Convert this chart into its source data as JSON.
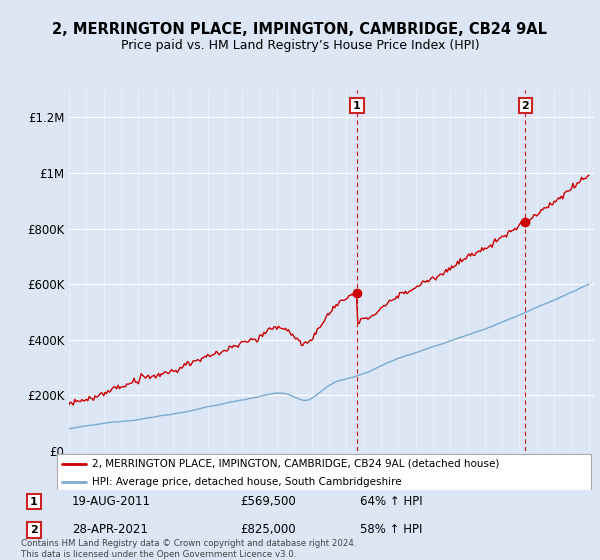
{
  "title": "2, MERRINGTON PLACE, IMPINGTON, CAMBRIDGE, CB24 9AL",
  "subtitle": "Price paid vs. HM Land Registry’s House Price Index (HPI)",
  "background_color": "#dce6f5",
  "plot_bg_color": "#dce6f5",
  "ylim": [
    0,
    1300000
  ],
  "yticks": [
    0,
    200000,
    400000,
    600000,
    800000,
    1000000,
    1200000
  ],
  "ytick_labels": [
    "£0",
    "£200K",
    "£400K",
    "£600K",
    "£800K",
    "£1M",
    "£1.2M"
  ],
  "sale1_year": 2011.625,
  "sale1_price": 569500,
  "sale2_year": 2021.33,
  "sale2_price": 825000,
  "line_color_property": "#cc0000",
  "line_color_hpi": "#7aaad0",
  "dashed_line_color": "#cc0000",
  "legend_label_property": "2, MERRINGTON PLACE, IMPINGTON, CAMBRIDGE, CB24 9AL (detached house)",
  "legend_label_hpi": "HPI: Average price, detached house, South Cambridgeshire",
  "footer": "Contains HM Land Registry data © Crown copyright and database right 2024.\nThis data is licensed under the Open Government Licence v3.0.",
  "xstart_year": 1995,
  "xend_year": 2025
}
